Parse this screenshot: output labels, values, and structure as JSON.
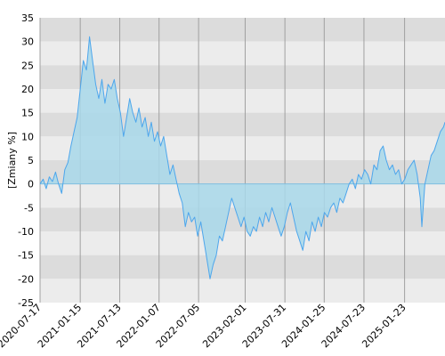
{
  "chart_data": {
    "type": "area",
    "title": "",
    "xlabel": "",
    "ylabel": "[Zmiany %]",
    "x_range": [
      "2020-07-17",
      "2025-07-25"
    ],
    "ylim": [
      -25,
      35
    ],
    "y_ticks": [
      35,
      30,
      25,
      20,
      15,
      10,
      5,
      0,
      -5,
      -10,
      -15,
      -20,
      -25
    ],
    "x_ticks": [
      "2020-07-17",
      "2021-01-15",
      "2021-07-13",
      "2022-01-07",
      "2022-07-05",
      "2023-02-01",
      "2023-07-31",
      "2024-01-25",
      "2024-07-23",
      "2025-01-23"
    ],
    "grid": "vertical lines at x ticks, alternating horizontal bands",
    "legend": "none",
    "colors": {
      "line": "#4da6ec",
      "fill": "#a8d8ea",
      "band_dark": "#dcdcdc",
      "band_light": "#ececec",
      "gridline": "#a0a0a0",
      "zero_line": "#7fbfe0"
    },
    "series": [
      {
        "points": [
          [
            "2020-07-17",
            0
          ],
          [
            "2020-07-31",
            1
          ],
          [
            "2020-08-14",
            -1
          ],
          [
            "2020-08-28",
            1.5
          ],
          [
            "2020-09-11",
            0.5
          ],
          [
            "2020-09-25",
            2.5
          ],
          [
            "2020-10-09",
            0
          ],
          [
            "2020-10-23",
            -2
          ],
          [
            "2020-11-06",
            3
          ],
          [
            "2020-11-20",
            4.5
          ],
          [
            "2020-12-04",
            8
          ],
          [
            "2020-12-18",
            11
          ],
          [
            "2021-01-01",
            14
          ],
          [
            "2021-01-15",
            20
          ],
          [
            "2021-01-29",
            26
          ],
          [
            "2021-02-12",
            24
          ],
          [
            "2021-02-26",
            31
          ],
          [
            "2021-03-12",
            26
          ],
          [
            "2021-03-26",
            21
          ],
          [
            "2021-04-09",
            18
          ],
          [
            "2021-04-23",
            22
          ],
          [
            "2021-05-07",
            17
          ],
          [
            "2021-05-21",
            21
          ],
          [
            "2021-06-04",
            20
          ],
          [
            "2021-06-18",
            22
          ],
          [
            "2021-07-02",
            18
          ],
          [
            "2021-07-16",
            15
          ],
          [
            "2021-07-30",
            10
          ],
          [
            "2021-08-13",
            14
          ],
          [
            "2021-08-27",
            18
          ],
          [
            "2021-09-10",
            15
          ],
          [
            "2021-09-24",
            13
          ],
          [
            "2021-10-08",
            16
          ],
          [
            "2021-10-22",
            12
          ],
          [
            "2021-11-05",
            14
          ],
          [
            "2021-11-19",
            10
          ],
          [
            "2021-12-03",
            13
          ],
          [
            "2021-12-17",
            9
          ],
          [
            "2021-12-31",
            11
          ],
          [
            "2022-01-14",
            8
          ],
          [
            "2022-01-28",
            10
          ],
          [
            "2022-02-11",
            6
          ],
          [
            "2022-02-25",
            2
          ],
          [
            "2022-03-11",
            4
          ],
          [
            "2022-03-25",
            1
          ],
          [
            "2022-04-08",
            -2
          ],
          [
            "2022-04-22",
            -4
          ],
          [
            "2022-05-06",
            -9
          ],
          [
            "2022-05-20",
            -6
          ],
          [
            "2022-06-03",
            -8
          ],
          [
            "2022-06-17",
            -7
          ],
          [
            "2022-07-01",
            -11
          ],
          [
            "2022-07-15",
            -8
          ],
          [
            "2022-07-29",
            -12
          ],
          [
            "2022-08-12",
            -16
          ],
          [
            "2022-08-26",
            -20
          ],
          [
            "2022-09-09",
            -17
          ],
          [
            "2022-09-23",
            -15
          ],
          [
            "2022-10-07",
            -11
          ],
          [
            "2022-10-21",
            -12
          ],
          [
            "2022-11-04",
            -9
          ],
          [
            "2022-11-18",
            -6
          ],
          [
            "2022-12-02",
            -3
          ],
          [
            "2022-12-16",
            -5
          ],
          [
            "2022-12-30",
            -7
          ],
          [
            "2023-01-13",
            -9
          ],
          [
            "2023-01-27",
            -7
          ],
          [
            "2023-02-10",
            -10
          ],
          [
            "2023-02-24",
            -11
          ],
          [
            "2023-03-10",
            -9
          ],
          [
            "2023-03-24",
            -10
          ],
          [
            "2023-04-07",
            -7
          ],
          [
            "2023-04-21",
            -9
          ],
          [
            "2023-05-05",
            -6
          ],
          [
            "2023-05-19",
            -8
          ],
          [
            "2023-06-02",
            -5
          ],
          [
            "2023-06-16",
            -7
          ],
          [
            "2023-06-30",
            -9
          ],
          [
            "2023-07-14",
            -11
          ],
          [
            "2023-07-28",
            -9
          ],
          [
            "2023-08-11",
            -6
          ],
          [
            "2023-08-25",
            -4
          ],
          [
            "2023-09-08",
            -7
          ],
          [
            "2023-09-22",
            -10
          ],
          [
            "2023-10-06",
            -12
          ],
          [
            "2023-10-20",
            -14
          ],
          [
            "2023-11-03",
            -10
          ],
          [
            "2023-11-17",
            -12
          ],
          [
            "2023-12-01",
            -8
          ],
          [
            "2023-12-15",
            -10
          ],
          [
            "2023-12-29",
            -7
          ],
          [
            "2024-01-12",
            -9
          ],
          [
            "2024-01-26",
            -6
          ],
          [
            "2024-02-09",
            -7
          ],
          [
            "2024-02-23",
            -5
          ],
          [
            "2024-03-08",
            -4
          ],
          [
            "2024-03-22",
            -6
          ],
          [
            "2024-04-05",
            -3
          ],
          [
            "2024-04-19",
            -4
          ],
          [
            "2024-05-03",
            -2
          ],
          [
            "2024-05-17",
            0
          ],
          [
            "2024-05-31",
            1
          ],
          [
            "2024-06-14",
            -1
          ],
          [
            "2024-06-28",
            2
          ],
          [
            "2024-07-12",
            1
          ],
          [
            "2024-07-26",
            3
          ],
          [
            "2024-08-09",
            2
          ],
          [
            "2024-08-23",
            0
          ],
          [
            "2024-09-06",
            4
          ],
          [
            "2024-09-20",
            3
          ],
          [
            "2024-10-04",
            7
          ],
          [
            "2024-10-18",
            8
          ],
          [
            "2024-11-01",
            5
          ],
          [
            "2024-11-15",
            3
          ],
          [
            "2024-11-29",
            4
          ],
          [
            "2024-12-13",
            2
          ],
          [
            "2024-12-27",
            3
          ],
          [
            "2025-01-10",
            0
          ],
          [
            "2025-01-24",
            1
          ],
          [
            "2025-02-07",
            3
          ],
          [
            "2025-02-21",
            4
          ],
          [
            "2025-03-07",
            5
          ],
          [
            "2025-03-21",
            2
          ],
          [
            "2025-04-04",
            -3
          ],
          [
            "2025-04-11",
            -9
          ],
          [
            "2025-04-25",
            0
          ],
          [
            "2025-05-09",
            3
          ],
          [
            "2025-05-23",
            6
          ],
          [
            "2025-06-06",
            7
          ],
          [
            "2025-06-20",
            9
          ],
          [
            "2025-07-04",
            11
          ],
          [
            "2025-07-18",
            12
          ],
          [
            "2025-07-25",
            13
          ]
        ]
      }
    ]
  }
}
